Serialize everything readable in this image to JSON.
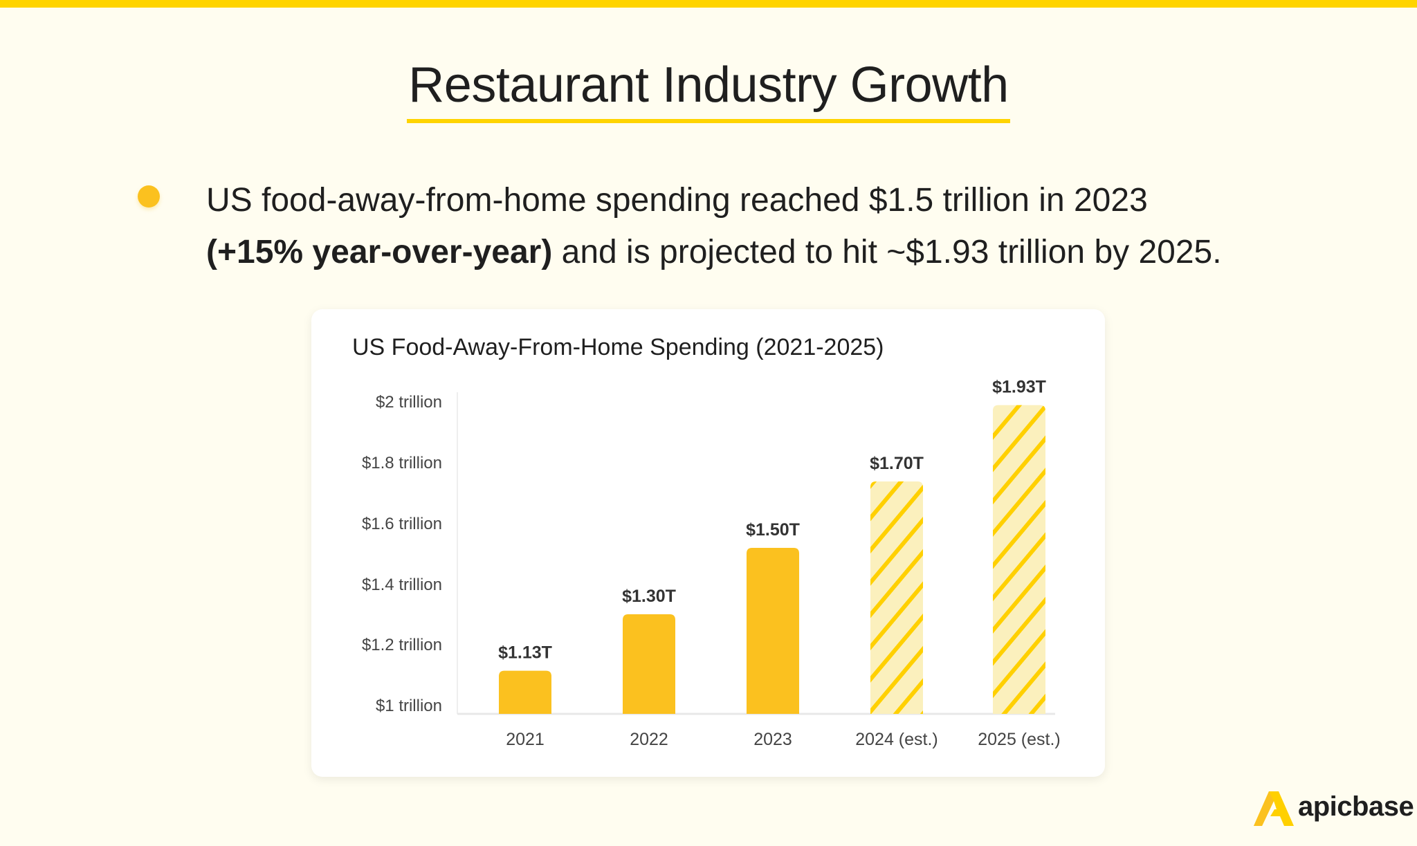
{
  "title": "Restaurant Industry Growth",
  "bullet": {
    "line1": "US food-away-from-home spending reached $1.5 trillion in 2023",
    "bold": "(+15% year-over-year)",
    "line2_rest": " and is projected to hit ~$1.93 trillion by 2025."
  },
  "colors": {
    "accent": "#ffd400",
    "bar": "#fbc11f",
    "estimate_fill": "#fbf0bd",
    "estimate_stripe": "#ffd000",
    "background": "#fffdf0"
  },
  "brand": {
    "name": "apicbase",
    "icon": "apicbase-a-logo-icon"
  },
  "chart_data": {
    "type": "bar",
    "title": "US Food-Away-From-Home Spending (2021-2025)",
    "categories": [
      "2021",
      "2022",
      "2023",
      "2024 (est.)",
      "2025 (est.)"
    ],
    "values": [
      1.13,
      1.3,
      1.5,
      1.7,
      1.93
    ],
    "data_labels": [
      "$1.13T",
      "$1.30T",
      "$1.50T",
      "$1.70T",
      "$1.93T"
    ],
    "estimated": [
      false,
      false,
      false,
      true,
      true
    ],
    "yticks": [
      1,
      1.2,
      1.4,
      1.6,
      1.8,
      2
    ],
    "ytick_labels": [
      "$1 trillion",
      "$1.2 trillion",
      "$1.4 trillion",
      "$1.6 trillion",
      "$1.8 trillion",
      "$2 trillion"
    ],
    "ylim": [
      1,
      2
    ],
    "grid": false,
    "xlabel": "",
    "ylabel": ""
  }
}
